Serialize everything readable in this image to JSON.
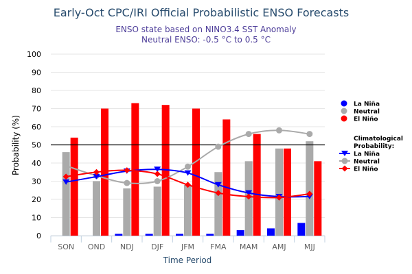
{
  "chart_data": {
    "type": "bar",
    "title": "Early-Oct CPC/IRI Official Probabilistic ENSO Forecasts",
    "subtitle_lines": [
      "ENSO state based on NINO3.4 SST Anomaly",
      "Neutral ENSO: -0.5 °C to 0.5 °C"
    ],
    "xlabel": "Time Period",
    "ylabel": "Probability (%)",
    "ylim": [
      0,
      100
    ],
    "yticks": [
      0,
      10,
      20,
      30,
      40,
      50,
      60,
      70,
      80,
      90,
      100
    ],
    "reference_line": 50,
    "grid": true,
    "categories": [
      "SON",
      "OND",
      "NDJ",
      "DJF",
      "JFM",
      "FMA",
      "MAM",
      "AMJ",
      "MJJ"
    ],
    "series": [
      {
        "name": "La Niña",
        "type": "bar",
        "color": "#0000ff",
        "values": [
          0,
          0,
          1,
          1,
          1,
          1,
          3,
          4,
          7
        ]
      },
      {
        "name": "Neutral",
        "type": "bar",
        "color": "#aaaaaa",
        "values": [
          46,
          30,
          26,
          27,
          28,
          35,
          41,
          48,
          52
        ]
      },
      {
        "name": "El Niño",
        "type": "bar",
        "color": "#ff0000",
        "values": [
          54,
          70,
          73,
          72,
          70,
          64,
          56,
          48,
          41
        ]
      }
    ],
    "climatology": [
      {
        "name": "La Niña",
        "type": "line",
        "marker": "triangle-down",
        "color": "#0000ff",
        "values": [
          29.5,
          32.5,
          35.5,
          36.5,
          34.5,
          28,
          23.5,
          21.5,
          21.5
        ]
      },
      {
        "name": "Neutral",
        "type": "line",
        "marker": "circle",
        "color": "#aaaaaa",
        "values": [
          38.5,
          33,
          29,
          30,
          38,
          49,
          56,
          58,
          56
        ]
      },
      {
        "name": "El Niño",
        "type": "line",
        "marker": "diamond",
        "color": "#ff0000",
        "values": [
          32.5,
          35,
          36,
          34,
          28,
          23.5,
          21.5,
          21,
          23
        ]
      }
    ],
    "legend": {
      "placement": "right",
      "bar_items": [
        "La Niña",
        "Neutral",
        "El Niño"
      ],
      "line_heading": [
        "Climatological",
        "Probability:"
      ],
      "line_items": [
        "La Niña",
        "Neutral",
        "El Niño"
      ]
    }
  }
}
